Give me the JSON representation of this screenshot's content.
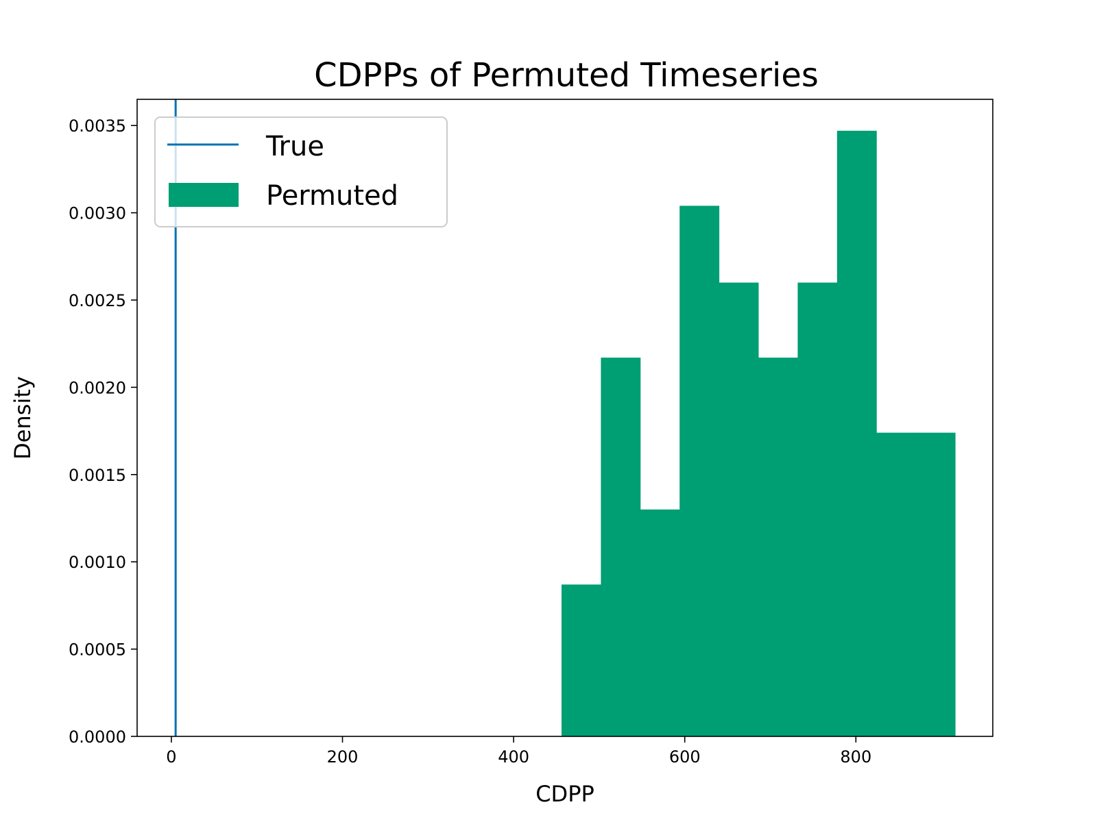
{
  "chart_data": {
    "type": "bar",
    "title": "CDPPs of Permuted Timeseries",
    "xlabel": "CDPP",
    "ylabel": "Density",
    "xlim": [
      -40,
      960
    ],
    "ylim": [
      0,
      0.00365
    ],
    "xticks": [
      0,
      200,
      400,
      600,
      800
    ],
    "xtick_labels": [
      "0",
      "200",
      "400",
      "600",
      "800"
    ],
    "yticks": [
      0,
      0.0005,
      0.001,
      0.0015,
      0.002,
      0.0025,
      0.003,
      0.0035
    ],
    "ytick_labels": [
      "0.0000",
      "0.0005",
      "0.0010",
      "0.0015",
      "0.0020",
      "0.0025",
      "0.0030",
      "0.0035"
    ],
    "grid": false,
    "legend_placement": "top-left",
    "series": [
      {
        "name": "Permuted",
        "kind": "histogram",
        "color": "#009e73",
        "bin_edges": [
          456,
          502,
          548,
          594,
          640,
          686,
          732,
          778,
          824,
          870,
          916
        ],
        "values": [
          0.00087,
          0.00217,
          0.0013,
          0.00304,
          0.0026,
          0.00217,
          0.0026,
          0.00347,
          0.00174,
          0.00174
        ]
      },
      {
        "name": "True",
        "kind": "vline",
        "color": "#0072b2",
        "x": 5
      }
    ]
  }
}
